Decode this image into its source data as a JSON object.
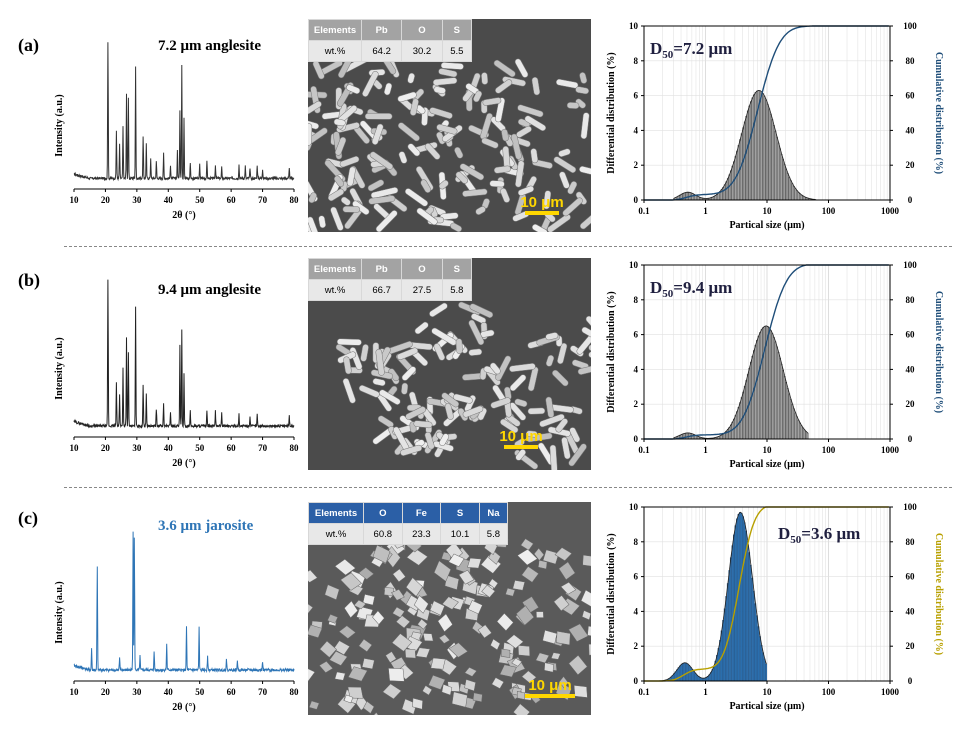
{
  "panels": [
    {
      "label": "(a)",
      "sample_label": "7.2 μm anglesite",
      "xrd": {
        "ylabel": "Intensity (a.u.)",
        "xlabel": "2θ (°)",
        "xticks": [
          "10",
          "20",
          "30",
          "40",
          "50",
          "60",
          "70",
          "80"
        ],
        "color": "#333333"
      },
      "sem": {
        "table_header": [
          "Elements",
          "Pb",
          "O",
          "S"
        ],
        "table_values": [
          "wt.%",
          "64.2",
          "30.2",
          "5.5"
        ],
        "scale_bar": "10 μm"
      },
      "psd": {
        "d50": "7.2 μm",
        "xlabel": "Partical size (μm)",
        "ylabel_left": "Differential distribution (%)",
        "ylabel_right": "Cumulative distribution (%)",
        "cum_color": "#1f4e79"
      }
    },
    {
      "label": "(b)",
      "sample_label": "9.4 μm anglesite",
      "xrd": {
        "ylabel": "Intensity (a.u.)",
        "xlabel": "2θ (°)",
        "xticks": [
          "10",
          "20",
          "30",
          "40",
          "50",
          "60",
          "70",
          "80"
        ],
        "color": "#222222"
      },
      "sem": {
        "table_header": [
          "Elements",
          "Pb",
          "O",
          "S"
        ],
        "table_values": [
          "wt.%",
          "66.7",
          "27.5",
          "5.8"
        ],
        "scale_bar": "10 μm"
      },
      "psd": {
        "d50": "9.4 μm",
        "xlabel": "Partical size (μm)",
        "ylabel_left": "Differential distribution (%)",
        "ylabel_right": "Cumulative distribution (%)",
        "cum_color": "#1f4e79"
      }
    },
    {
      "label": "(c)",
      "sample_label": "3.6 μm jarosite",
      "xrd": {
        "ylabel": "Intensity (a.u.)",
        "xlabel": "2θ (°)",
        "xticks": [
          "10",
          "20",
          "30",
          "40",
          "50",
          "60",
          "70",
          "80"
        ],
        "color": "#2e75b6"
      },
      "sem": {
        "table_header": [
          "Elements",
          "O",
          "Fe",
          "S",
          "Na"
        ],
        "table_values": [
          "wt.%",
          "60.8",
          "23.3",
          "10.1",
          "5.8"
        ],
        "scale_bar": "10 μm"
      },
      "psd": {
        "d50": "3.6 μm",
        "xlabel": "Partical size (μm)",
        "ylabel_left": "Differential distribution (%)",
        "ylabel_right": "Cumulative distribution (%)",
        "cum_color": "#b8a000"
      }
    }
  ],
  "chart_data": [
    {
      "type": "line",
      "panel": "(a) XRD",
      "xlabel": "2θ (°)",
      "ylabel": "Intensity (a.u.)",
      "xlim": [
        10,
        80
      ],
      "peaks": [
        [
          20.8,
          1.0
        ],
        [
          23.5,
          0.35
        ],
        [
          24.5,
          0.25
        ],
        [
          25.6,
          0.38
        ],
        [
          26.7,
          0.62
        ],
        [
          27.3,
          0.58
        ],
        [
          29.6,
          0.82
        ],
        [
          32.0,
          0.3
        ],
        [
          33.0,
          0.25
        ],
        [
          34.4,
          0.15
        ],
        [
          36.2,
          0.12
        ],
        [
          38.5,
          0.18
        ],
        [
          40.7,
          0.1
        ],
        [
          42.9,
          0.2
        ],
        [
          43.7,
          0.5
        ],
        [
          44.3,
          0.82
        ],
        [
          45.0,
          0.45
        ],
        [
          47.0,
          0.12
        ],
        [
          50.0,
          0.1
        ],
        [
          52.3,
          0.12
        ],
        [
          55.0,
          0.1
        ],
        [
          57.0,
          0.08
        ],
        [
          62.5,
          0.1
        ],
        [
          64.5,
          0.09
        ],
        [
          66.0,
          0.08
        ],
        [
          68.3,
          0.1
        ],
        [
          70.0,
          0.07
        ],
        [
          78.5,
          0.07
        ]
      ]
    },
    {
      "type": "bar",
      "panel": "(a) PSD",
      "xlabel": "Partical size (μm)",
      "ylabel": "Differential distribution (%)",
      "y2label": "Cumulative distribution (%)",
      "xscale": "log",
      "xlim": [
        0.1,
        1000
      ],
      "ylim": [
        0,
        10
      ],
      "y2lim": [
        0,
        100
      ],
      "yticks": [
        0,
        2,
        4,
        6,
        8,
        10
      ],
      "y2ticks": [
        0,
        20,
        40,
        60,
        80,
        100
      ],
      "d50": 7.2,
      "peak_value": 6.3,
      "minor_peak": [
        0.5,
        0.45
      ],
      "range": [
        0.3,
        60
      ]
    },
    {
      "type": "line",
      "panel": "(b) XRD",
      "xlabel": "2θ (°)",
      "ylabel": "Intensity (a.u.)",
      "xlim": [
        10,
        80
      ],
      "peaks": [
        [
          20.8,
          1.0
        ],
        [
          23.5,
          0.3
        ],
        [
          24.5,
          0.22
        ],
        [
          25.6,
          0.4
        ],
        [
          26.7,
          0.6
        ],
        [
          27.3,
          0.5
        ],
        [
          29.6,
          0.82
        ],
        [
          32.0,
          0.28
        ],
        [
          33.0,
          0.22
        ],
        [
          36.2,
          0.12
        ],
        [
          38.5,
          0.15
        ],
        [
          40.7,
          0.1
        ],
        [
          43.7,
          0.55
        ],
        [
          44.3,
          0.65
        ],
        [
          45.0,
          0.35
        ],
        [
          47.0,
          0.1
        ],
        [
          52.3,
          0.1
        ],
        [
          55.0,
          0.1
        ],
        [
          57.0,
          0.09
        ],
        [
          62.5,
          0.08
        ],
        [
          66.0,
          0.07
        ],
        [
          68.3,
          0.08
        ],
        [
          78.5,
          0.07
        ]
      ]
    },
    {
      "type": "bar",
      "panel": "(b) PSD",
      "xlabel": "Partical size (μm)",
      "ylabel": "Differential distribution (%)",
      "y2label": "Cumulative distribution (%)",
      "xscale": "log",
      "xlim": [
        0.1,
        1000
      ],
      "ylim": [
        0,
        10
      ],
      "y2lim": [
        0,
        100
      ],
      "yticks": [
        0,
        2,
        4,
        6,
        8,
        10
      ],
      "y2ticks": [
        0,
        20,
        40,
        60,
        80,
        100
      ],
      "d50": 9.4,
      "peak_value": 6.5,
      "minor_peak": [
        0.5,
        0.35
      ],
      "range": [
        0.3,
        45
      ]
    },
    {
      "type": "line",
      "panel": "(c) XRD",
      "xlabel": "2θ (°)",
      "ylabel": "Intensity (a.u.)",
      "xlim": [
        10,
        80
      ],
      "peaks": [
        [
          15.6,
          0.15
        ],
        [
          17.4,
          0.7
        ],
        [
          24.5,
          0.08
        ],
        [
          28.8,
          0.95
        ],
        [
          29.2,
          0.9
        ],
        [
          31.0,
          0.1
        ],
        [
          35.5,
          0.12
        ],
        [
          39.5,
          0.18
        ],
        [
          45.8,
          0.3
        ],
        [
          49.8,
          0.3
        ],
        [
          52.5,
          0.1
        ],
        [
          58.5,
          0.08
        ],
        [
          62.0,
          0.07
        ],
        [
          70.0,
          0.06
        ]
      ]
    },
    {
      "type": "bar",
      "panel": "(c) PSD",
      "xlabel": "Partical size (μm)",
      "ylabel": "Differential distribution (%)",
      "y2label": "Cumulative distribution (%)",
      "xscale": "log",
      "xlim": [
        0.1,
        1000
      ],
      "ylim": [
        0,
        10
      ],
      "y2lim": [
        0,
        100
      ],
      "yticks": [
        0,
        2,
        4,
        6,
        8,
        10
      ],
      "y2ticks": [
        0,
        20,
        40,
        60,
        80,
        100
      ],
      "d50": 3.6,
      "peak_value": 9.7,
      "minor_peak": [
        0.45,
        1.05
      ],
      "range": [
        0.15,
        10
      ]
    }
  ]
}
